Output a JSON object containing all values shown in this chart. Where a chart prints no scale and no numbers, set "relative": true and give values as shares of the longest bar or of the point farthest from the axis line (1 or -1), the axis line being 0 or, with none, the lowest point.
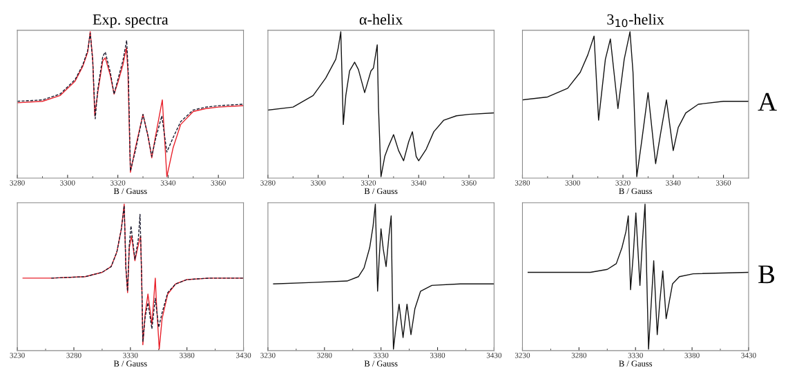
{
  "chart_data": [
    {
      "type": "line",
      "title": "Exp. spectra",
      "xlabel": "B / Gauss",
      "relative": true,
      "xlim": [
        3280,
        3370
      ],
      "xticks": [
        3280,
        3300,
        3320,
        3340,
        3360
      ],
      "grid": false,
      "legend": false,
      "series": [
        {
          "color": "#e8202a",
          "line_style": "solid",
          "x": [
            3280,
            3290,
            3297,
            3303,
            3306,
            3308,
            3309,
            3310,
            3310.8,
            3312,
            3314,
            3315,
            3317,
            3318.5,
            3320,
            3322,
            3323.4,
            3324,
            3325,
            3327,
            3330,
            3332,
            3333.5,
            3335,
            3337.7,
            3339.5,
            3342,
            3345,
            3350,
            3355,
            3360,
            3370
          ],
          "values": [
            0.51,
            0.52,
            0.56,
            0.66,
            0.76,
            0.86,
            1.0,
            0.81,
            0.42,
            0.58,
            0.8,
            0.82,
            0.7,
            0.57,
            0.65,
            0.77,
            0.89,
            0.73,
            0.03,
            0.2,
            0.43,
            0.28,
            0.13,
            0.28,
            0.53,
            0.0,
            0.2,
            0.36,
            0.45,
            0.47,
            0.48,
            0.49
          ]
        },
        {
          "color": "#1a1a2e",
          "line_style": "dashed",
          "x": [
            3280,
            3290,
            3297,
            3303,
            3306,
            3308,
            3309,
            3310,
            3311,
            3312,
            3314,
            3315,
            3317,
            3318.5,
            3320,
            3322,
            3323.5,
            3324.2,
            3325,
            3327,
            3330,
            3332,
            3333.5,
            3335,
            3337.5,
            3339.5,
            3342,
            3345,
            3350,
            3355,
            3360,
            3370
          ],
          "values": [
            0.52,
            0.53,
            0.57,
            0.67,
            0.77,
            0.87,
            0.99,
            0.8,
            0.4,
            0.6,
            0.83,
            0.86,
            0.72,
            0.57,
            0.67,
            0.8,
            0.94,
            0.7,
            0.04,
            0.18,
            0.43,
            0.28,
            0.14,
            0.26,
            0.42,
            0.17,
            0.27,
            0.38,
            0.46,
            0.48,
            0.49,
            0.5
          ]
        }
      ]
    },
    {
      "type": "line",
      "title": "α-helix",
      "xlabel": "B / Gauss",
      "relative": true,
      "xlim": [
        3280,
        3370
      ],
      "xticks": [
        3280,
        3300,
        3320,
        3340,
        3360
      ],
      "grid": false,
      "legend": false,
      "series": [
        {
          "color": "#111111",
          "line_style": "solid",
          "x": [
            3280,
            3290,
            3298,
            3303,
            3307,
            3308,
            3309,
            3310,
            3311,
            3312.5,
            3314.5,
            3316,
            3318.5,
            3321,
            3322,
            3323.5,
            3324,
            3325,
            3326.5,
            3328,
            3330,
            3332,
            3334,
            3336,
            3337.5,
            3339,
            3340,
            3343,
            3346,
            3350,
            3355,
            3360,
            3370
          ],
          "values": [
            0.46,
            0.48,
            0.56,
            0.68,
            0.81,
            0.89,
            1.0,
            0.36,
            0.56,
            0.73,
            0.79,
            0.74,
            0.58,
            0.73,
            0.75,
            0.91,
            0.48,
            0.0,
            0.14,
            0.21,
            0.29,
            0.18,
            0.11,
            0.24,
            0.31,
            0.14,
            0.11,
            0.19,
            0.31,
            0.39,
            0.42,
            0.43,
            0.44
          ]
        }
      ]
    },
    {
      "type": "line",
      "title": "3$_{10}$-helix",
      "xlabel": "B / Gauss",
      "relative": true,
      "xlim": [
        3280,
        3370
      ],
      "xticks": [
        3280,
        3300,
        3320,
        3340,
        3360
      ],
      "grid": false,
      "legend": false,
      "annotations": [
        "A"
      ],
      "series": [
        {
          "color": "#111111",
          "line_style": "solid",
          "x": [
            3280,
            3290,
            3298,
            3303,
            3306,
            3308.5,
            3310.3,
            3313,
            3315,
            3318,
            3320.5,
            3322.8,
            3324,
            3325.5,
            3327.5,
            3330,
            3333,
            3335,
            3337.3,
            3340,
            3342,
            3345,
            3350,
            3360,
            3370
          ],
          "values": [
            0.53,
            0.55,
            0.61,
            0.72,
            0.84,
            0.97,
            0.39,
            0.81,
            0.95,
            0.47,
            0.81,
            1.0,
            0.72,
            0.0,
            0.25,
            0.58,
            0.09,
            0.3,
            0.53,
            0.18,
            0.34,
            0.44,
            0.5,
            0.52,
            0.52
          ]
        }
      ]
    },
    {
      "type": "line",
      "xlabel": "B / Gauss",
      "relative": true,
      "xlim": [
        3230,
        3430
      ],
      "xticks": [
        3230,
        3280,
        3330,
        3380,
        3430
      ],
      "grid": false,
      "legend": false,
      "series": [
        {
          "color": "#e8202a",
          "line_style": "solid",
          "x": [
            3235,
            3260,
            3290,
            3305,
            3313,
            3318,
            3322,
            3324.5,
            3326,
            3327.5,
            3329,
            3331,
            3334,
            3337,
            3339,
            3340,
            3341,
            3343,
            3345.5,
            3349,
            3352,
            3353,
            3355.5,
            3358,
            3363,
            3370,
            3380,
            3400,
            3430
          ],
          "values": [
            0.49,
            0.49,
            0.5,
            0.53,
            0.57,
            0.67,
            0.83,
            1.0,
            0.56,
            0.39,
            0.7,
            0.78,
            0.61,
            0.72,
            0.78,
            0.48,
            0.03,
            0.24,
            0.38,
            0.17,
            0.49,
            0.32,
            0.0,
            0.21,
            0.38,
            0.45,
            0.48,
            0.49,
            0.49
          ]
        },
        {
          "color": "#1a1a2e",
          "line_style": "dashed",
          "x": [
            3260,
            3290,
            3305,
            3313,
            3318,
            3322,
            3324.5,
            3326,
            3327.5,
            3329,
            3330.5,
            3334,
            3337,
            3338.5,
            3340,
            3341,
            3343,
            3345.5,
            3349,
            3352,
            3355,
            3358,
            3363,
            3370,
            3380,
            3400,
            3430
          ],
          "values": [
            0.49,
            0.5,
            0.53,
            0.57,
            0.67,
            0.83,
            0.99,
            0.56,
            0.4,
            0.72,
            0.85,
            0.62,
            0.76,
            0.93,
            0.48,
            0.05,
            0.22,
            0.32,
            0.14,
            0.35,
            0.15,
            0.25,
            0.39,
            0.45,
            0.48,
            0.49,
            0.49
          ]
        }
      ]
    },
    {
      "type": "line",
      "xlabel": "B / Gauss",
      "relative": true,
      "xlim": [
        3230,
        3430
      ],
      "xticks": [
        3230,
        3280,
        3330,
        3380,
        3430
      ],
      "grid": false,
      "legend": false,
      "series": [
        {
          "color": "#111111",
          "line_style": "solid",
          "x": [
            3235,
            3270,
            3300,
            3310,
            3315,
            3320,
            3323,
            3325,
            3327,
            3328.5,
            3330,
            3332,
            3334.5,
            3337,
            3339,
            3340,
            3341,
            3343,
            3346,
            3349.5,
            3353,
            3356.5,
            3360,
            3365,
            3375,
            3400,
            3430
          ],
          "values": [
            0.45,
            0.46,
            0.47,
            0.5,
            0.56,
            0.7,
            0.85,
            1.0,
            0.4,
            0.64,
            0.83,
            0.69,
            0.57,
            0.78,
            0.92,
            0.4,
            0.0,
            0.14,
            0.31,
            0.08,
            0.31,
            0.1,
            0.28,
            0.4,
            0.44,
            0.45,
            0.45
          ]
        }
      ]
    },
    {
      "type": "line",
      "xlabel": "B / Gauss",
      "relative": true,
      "xlim": [
        3230,
        3430
      ],
      "xticks": [
        3230,
        3280,
        3330,
        3380,
        3430
      ],
      "grid": false,
      "legend": false,
      "annotations": [
        "B"
      ],
      "series": [
        {
          "color": "#111111",
          "line_style": "solid",
          "x": [
            3235,
            3290,
            3305,
            3313,
            3318,
            3321.5,
            3323.6,
            3325.6,
            3328,
            3330.3,
            3333.9,
            3336,
            3338.4,
            3341.5,
            3344,
            3346.1,
            3349.2,
            3351.5,
            3354.1,
            3357.1,
            3362.7,
            3368.8,
            3381,
            3430
          ],
          "values": [
            0.53,
            0.53,
            0.55,
            0.59,
            0.7,
            0.81,
            0.92,
            0.41,
            0.65,
            0.94,
            0.44,
            0.73,
            1.0,
            0.0,
            0.33,
            0.61,
            0.1,
            0.33,
            0.54,
            0.21,
            0.45,
            0.5,
            0.52,
            0.53
          ]
        }
      ]
    }
  ]
}
